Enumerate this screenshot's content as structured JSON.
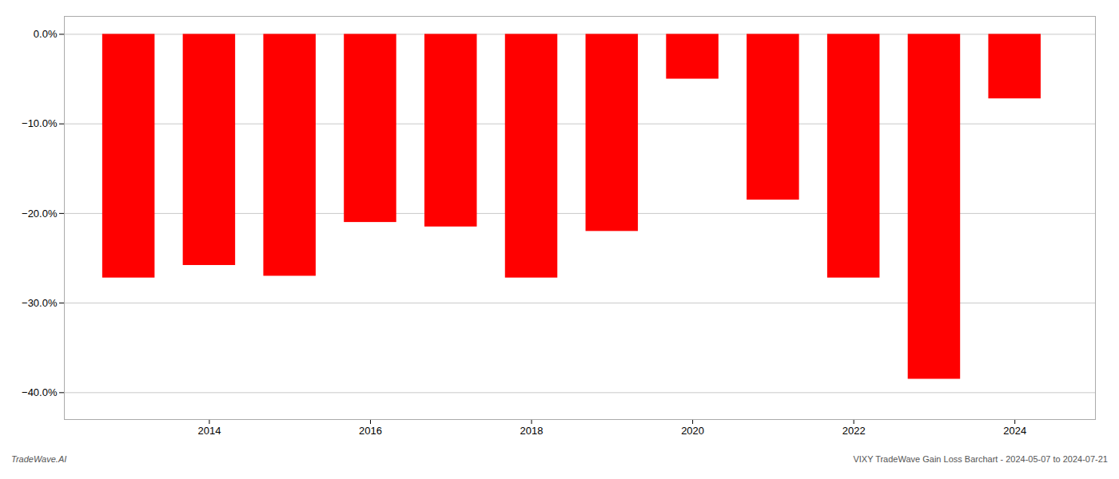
{
  "chart_data": {
    "type": "bar",
    "x": [
      2013,
      2014,
      2015,
      2016,
      2017,
      2018,
      2019,
      2020,
      2021,
      2022,
      2023,
      2024
    ],
    "values": [
      -27.2,
      -25.8,
      -27.0,
      -21.0,
      -21.5,
      -27.2,
      -22.0,
      -5.0,
      -18.5,
      -27.2,
      -38.5,
      -7.2
    ],
    "color": "#ff0000",
    "xlim": [
      2012.2,
      2025.0
    ],
    "xticks": [
      2014,
      2016,
      2018,
      2020,
      2022,
      2024
    ],
    "ylim": [
      -43,
      2.0
    ],
    "yticks": [
      {
        "value": 0.0,
        "label": "0.0%"
      },
      {
        "value": -10.0,
        "label": "−10.0%"
      },
      {
        "value": -20.0,
        "label": "−20.0%"
      },
      {
        "value": -30.0,
        "label": "−30.0%"
      },
      {
        "value": -40.0,
        "label": "−40.0%"
      }
    ],
    "grid": true,
    "annotations": [
      "TradeWave.AI",
      "VIXY TradeWave Gain Loss Barchart - 2024-05-07 to 2024-07-21"
    ]
  }
}
